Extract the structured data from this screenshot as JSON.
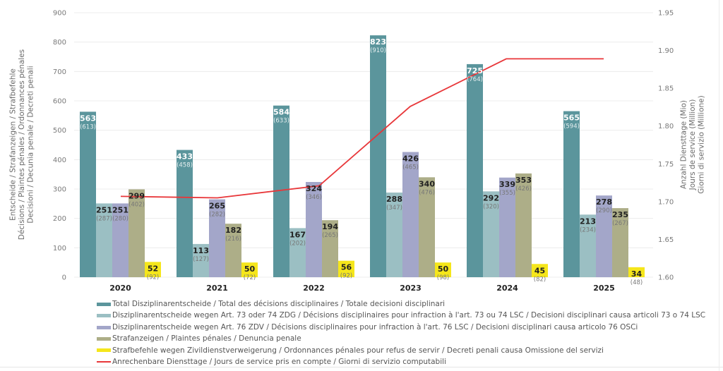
{
  "chart_data": {
    "type": "bar",
    "title": "",
    "categories": [
      "2020",
      "2021",
      "2022",
      "2023",
      "2024",
      "2025"
    ],
    "ylabel_left": [
      "Entscheide / Strafanzeigen / Strafbefehle",
      "Décisions / Plaintes pénales / Ordonnances pénales",
      "Decisioni / Decunia penale / Decreti penali"
    ],
    "ylabel_right": [
      "Anzahl Diensttage (Mio)",
      "Jours de service (Million)",
      "Giorni di servizio (Millione)"
    ],
    "ylim_left": [
      0,
      900
    ],
    "yticks_left": [
      "0",
      "100",
      "200",
      "300",
      "400",
      "500",
      "600",
      "700",
      "800",
      "900"
    ],
    "ylim_right": [
      1.6,
      1.95
    ],
    "yticks_right": [
      "1.60",
      "1.65",
      "1.70",
      "1.75",
      "1.80",
      "1.85",
      "1.90",
      "1.95"
    ],
    "grid": true,
    "legend_position": "bottom",
    "series": [
      {
        "name": "Total Disziplinarentscheide / Total des décisions disciplinaires / Totale decisioni disciplinari",
        "type": "bar",
        "color": "#5b959c",
        "label_color": "#ffffff",
        "values": [
          563,
          433,
          584,
          823,
          725,
          565
        ],
        "secondary_labels": [
          "(613)",
          "(458)",
          "(633)",
          "(910)",
          "(764)",
          "(594)"
        ]
      },
      {
        "name": "Disziplinarentscheide wegen Art. 73 oder 74 ZDG / Décisions disciplinaires pour infraction à l'art. 73 ou 74 LSC / Decisioni disciplinari causa articoli 73 o 74 LSC",
        "type": "bar",
        "color": "#9bbfc3",
        "label_color": "#222222",
        "values": [
          251,
          113,
          167,
          288,
          292,
          213
        ],
        "secondary_labels": [
          "(287)",
          "(127)",
          "(202)",
          "(347)",
          "(320)",
          "(234)"
        ]
      },
      {
        "name": "Disziplinarentscheide wegen Art. 76 ZDV / Décisions disciplinaires pour infraction à l'art. 76 LSC / Decisioni disciplinari causa articolo 76 OSCi",
        "type": "bar",
        "color": "#a3a6c9",
        "label_color": "#222222",
        "values": [
          251,
          265,
          324,
          426,
          339,
          278
        ],
        "secondary_labels": [
          "(280)",
          "(282)",
          "(346)",
          "(465)",
          "(355)",
          "(290)"
        ]
      },
      {
        "name": "Strafanzeigen / Plaintes pénales / Denuncia penale",
        "type": "bar",
        "color": "#adae88",
        "label_color": "#222222",
        "values": [
          299,
          182,
          194,
          340,
          353,
          235
        ],
        "secondary_labels": [
          "(402)",
          "(216)",
          "(265)",
          "(476)",
          "(426)",
          "(267)"
        ]
      },
      {
        "name": "Strafbefehle wegen Zivildienstverweigerung / Ordonnances pénales pour refus de servir / Decreti penali causa Omissione del servizi",
        "type": "bar",
        "color": "#f5e61b",
        "label_color": "#222222",
        "values": [
          52,
          50,
          56,
          50,
          45,
          34
        ],
        "secondary_labels": [
          "(92)",
          "(72)",
          "(92)",
          "(98)",
          "(82)",
          "(48)"
        ]
      },
      {
        "name": "Anrechenbare Diensttage / Jours de service pris en compte / Giorni di servizio computabili",
        "type": "line",
        "axis": "right",
        "color": "#e8373a",
        "values": [
          1.707,
          1.705,
          1.721,
          1.826,
          1.889,
          1.889
        ]
      }
    ]
  }
}
